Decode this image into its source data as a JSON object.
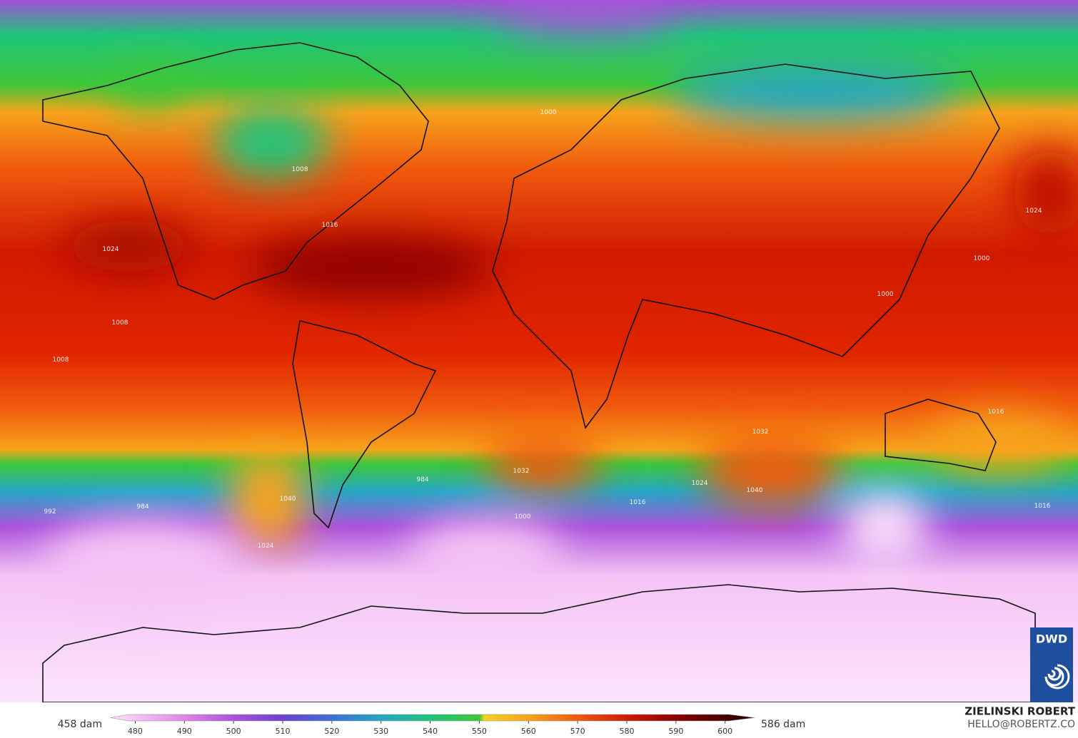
{
  "map": {
    "isobar_labels": [
      "1024",
      "1008",
      "1008",
      "1016",
      "1008",
      "1000",
      "1032",
      "1032",
      "1040",
      "1024",
      "1016",
      "1000",
      "1024",
      "1000",
      "1000",
      "1016",
      "1016",
      "1040",
      "1024",
      "984",
      "984",
      "992"
    ],
    "colorbar": {
      "min_label": "458 dam",
      "max_label": "586 dam",
      "lim": [
        475,
        606
      ],
      "ticks": [
        480,
        490,
        500,
        510,
        520,
        530,
        540,
        550,
        560,
        570,
        580,
        590,
        600
      ],
      "colormap": [
        {
          "value": 475,
          "color": "#fbe3fb"
        },
        {
          "value": 480,
          "color": "#f5c4f5"
        },
        {
          "value": 490,
          "color": "#df86e6"
        },
        {
          "value": 500,
          "color": "#ab52dc"
        },
        {
          "value": 510,
          "color": "#6d40d2"
        },
        {
          "value": 520,
          "color": "#3e6fd6"
        },
        {
          "value": 530,
          "color": "#25a6c4"
        },
        {
          "value": 540,
          "color": "#1fc47a"
        },
        {
          "value": 550,
          "color": "#3ec63a"
        },
        {
          "value": 551,
          "color": "#f5d21e"
        },
        {
          "value": 560,
          "color": "#f7a31c"
        },
        {
          "value": 570,
          "color": "#f05a0e"
        },
        {
          "value": 580,
          "color": "#d01a00"
        },
        {
          "value": 590,
          "color": "#8c0000"
        },
        {
          "value": 606,
          "color": "#1c0000"
        }
      ]
    }
  },
  "credits": {
    "author": "ZIELINSKI ROBERT",
    "contact": "HELLO@ROBERTZ.CO",
    "logo": "DWD"
  }
}
